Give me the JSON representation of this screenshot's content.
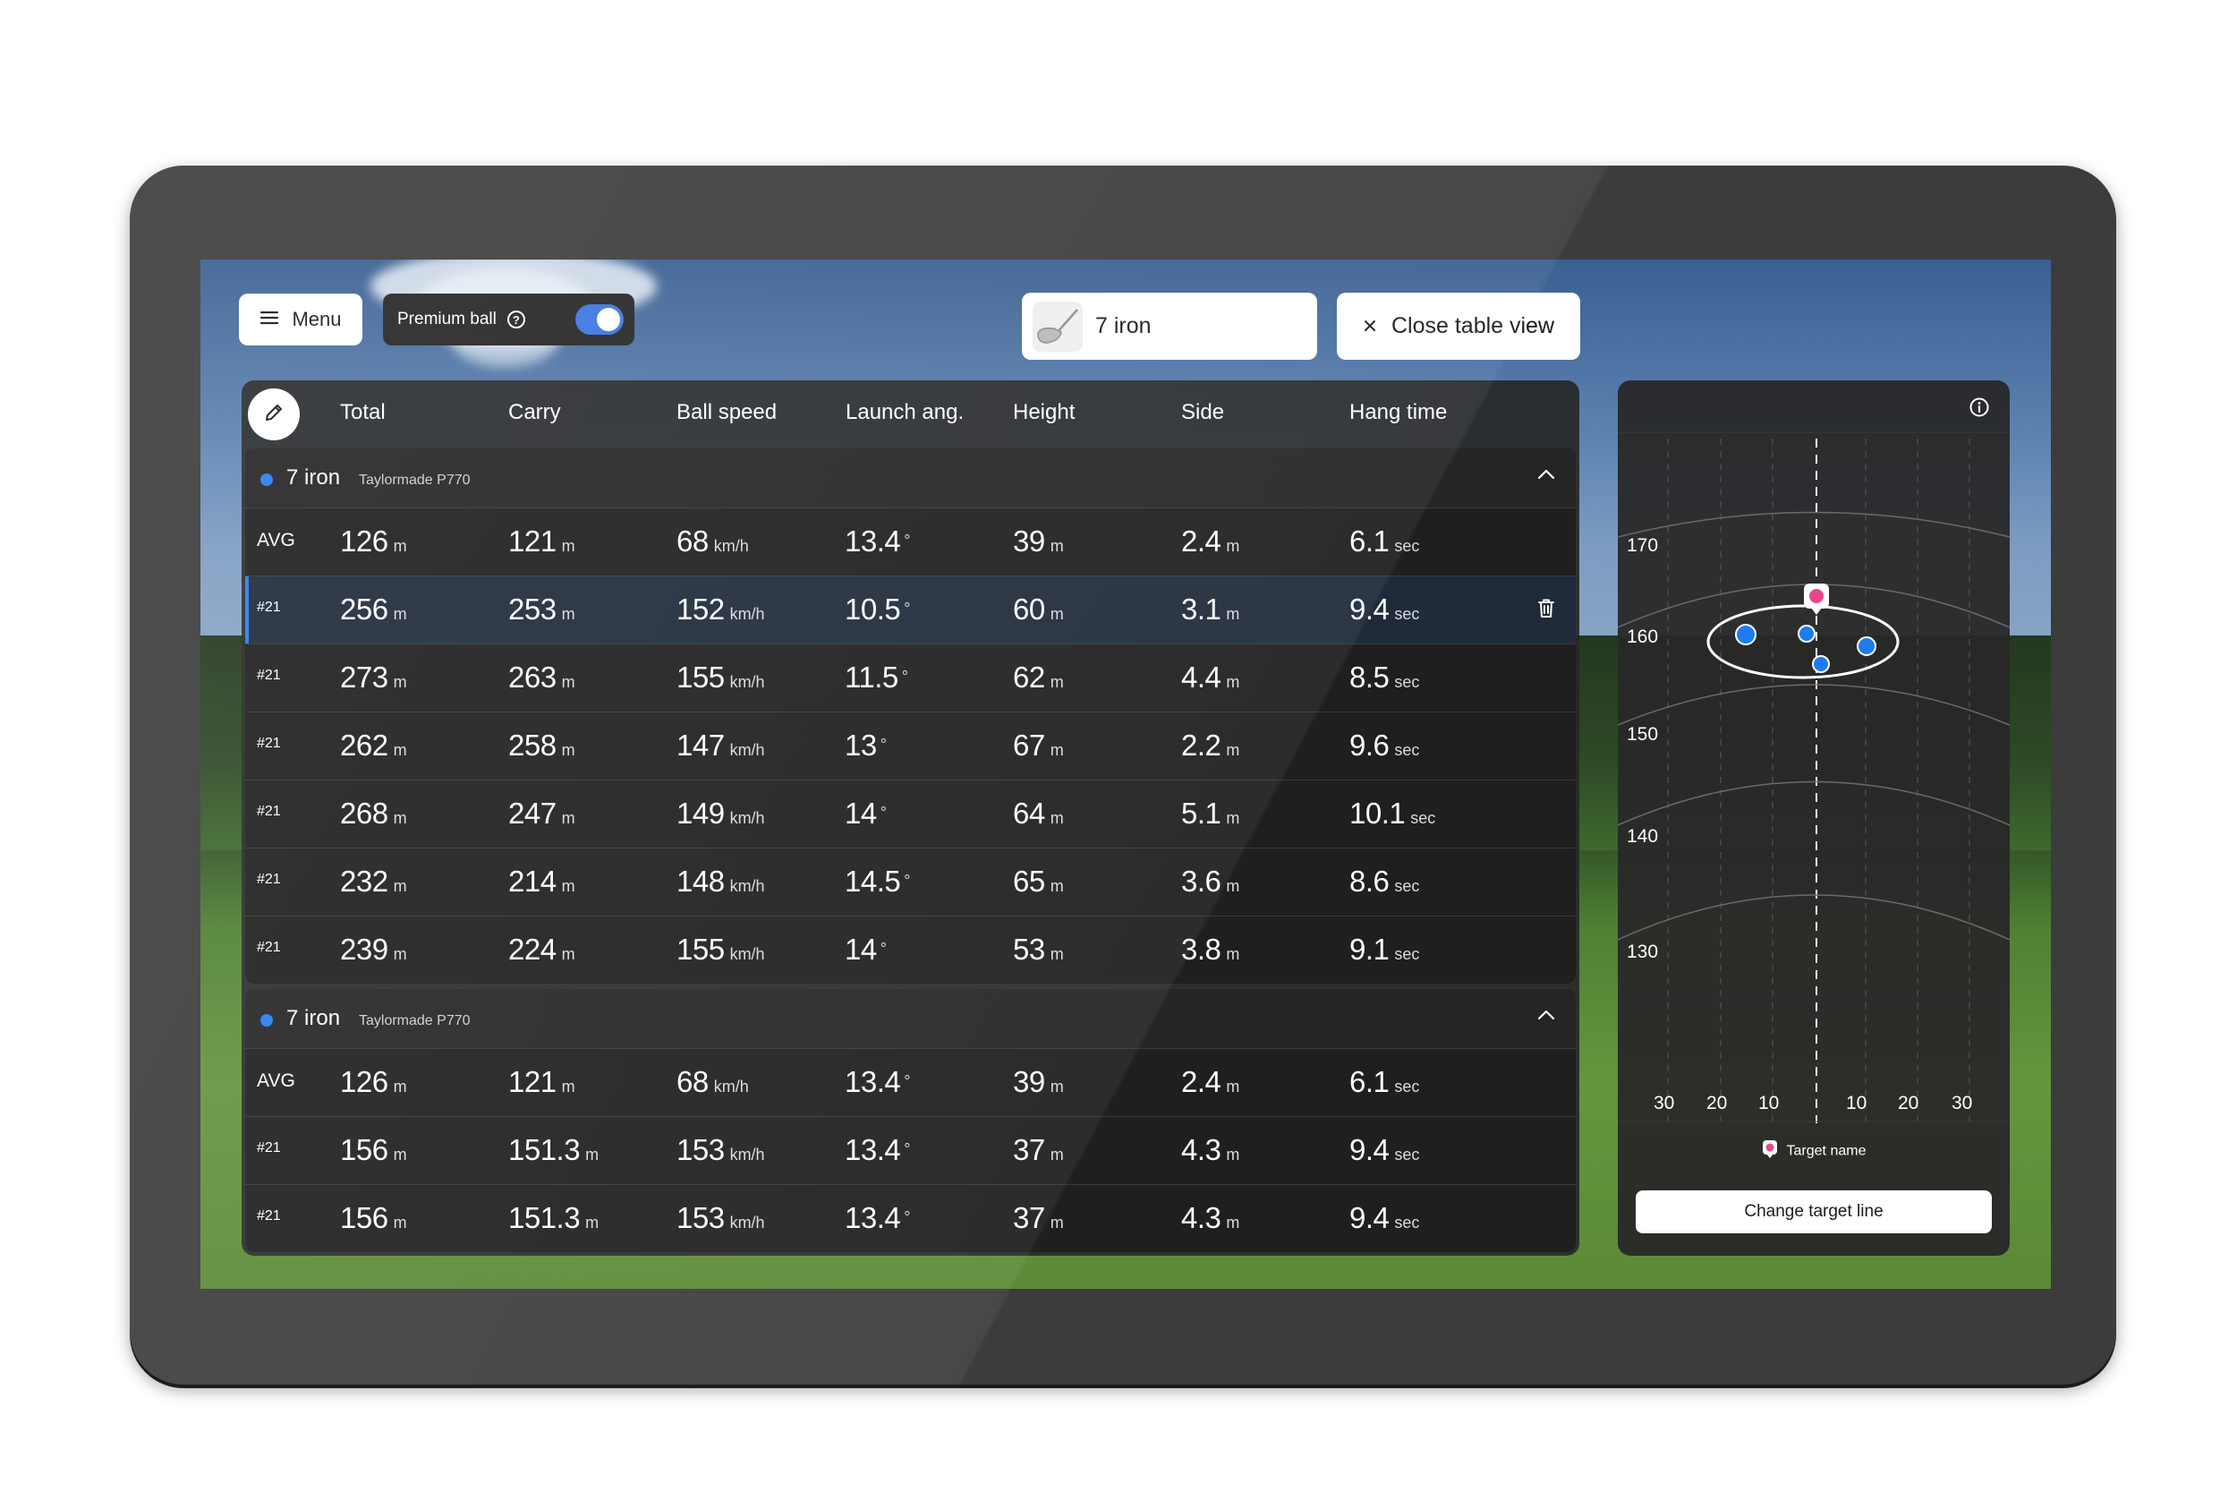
{
  "topbar": {
    "menu_label": "Menu",
    "premium_label": "Premium ball",
    "premium_enabled": true,
    "club_label": "7 iron",
    "close_label": "Close table view"
  },
  "table": {
    "columns": [
      "Total",
      "Carry",
      "Ball speed",
      "Launch ang.",
      "Height",
      "Side",
      "Hang time"
    ],
    "units": [
      "m",
      "m",
      "km/h",
      "°",
      "m",
      "m",
      "sec"
    ],
    "groups": [
      {
        "title": "7 iron",
        "subtitle": "Taylormade P770",
        "rows": [
          {
            "label": "AVG",
            "values": [
              "126",
              "121",
              "68",
              "13.4",
              "39",
              "2.4",
              "6.1"
            ]
          },
          {
            "label": "#21",
            "values": [
              "256",
              "253",
              "152",
              "10.5",
              "60",
              "3.1",
              "9.4"
            ],
            "selected": true
          },
          {
            "label": "#21",
            "values": [
              "273",
              "263",
              "155",
              "11.5",
              "62",
              "4.4",
              "8.5"
            ]
          },
          {
            "label": "#21",
            "values": [
              "262",
              "258",
              "147",
              "13",
              "67",
              "2.2",
              "9.6"
            ]
          },
          {
            "label": "#21",
            "values": [
              "268",
              "247",
              "149",
              "14",
              "64",
              "5.1",
              "10.1"
            ]
          },
          {
            "label": "#21",
            "values": [
              "232",
              "214",
              "148",
              "14.5",
              "65",
              "3.6",
              "8.6"
            ]
          },
          {
            "label": "#21",
            "values": [
              "239",
              "224",
              "155",
              "14",
              "53",
              "3.8",
              "9.1"
            ]
          }
        ]
      },
      {
        "title": "7 iron",
        "subtitle": "Taylormade P770",
        "rows": [
          {
            "label": "AVG",
            "values": [
              "126",
              "121",
              "68",
              "13.4",
              "39",
              "2.4",
              "6.1"
            ]
          },
          {
            "label": "#21",
            "values": [
              "156",
              "151.3",
              "153",
              "13.4",
              "37",
              "4.3",
              "9.4"
            ]
          },
          {
            "label": "#21",
            "values": [
              "156",
              "151.3",
              "153",
              "13.4",
              "37",
              "4.3",
              "9.4"
            ]
          }
        ]
      }
    ]
  },
  "dispersion": {
    "distance_labels": [
      "170",
      "160",
      "150",
      "140",
      "130"
    ],
    "side_labels": [
      "30",
      "20",
      "10",
      "10",
      "20",
      "30"
    ],
    "target_legend": "Target name",
    "change_button": "Change target line",
    "colors": {
      "shot": "#1f7cf0",
      "target": "#e8478e"
    }
  }
}
